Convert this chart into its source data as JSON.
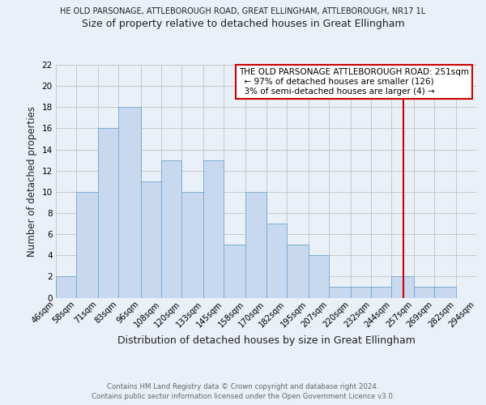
{
  "title_top": "HE OLD PARSONAGE, ATTLEBOROUGH ROAD, GREAT ELLINGHAM, ATTLEBOROUGH, NR17 1L",
  "title_main": "Size of property relative to detached houses in Great Ellingham",
  "xlabel": "Distribution of detached houses by size in Great Ellingham",
  "ylabel": "Number of detached properties",
  "bar_values": [
    2,
    10,
    16,
    18,
    11,
    13,
    10,
    13,
    5,
    10,
    7,
    5,
    4,
    1,
    1,
    1,
    2,
    1,
    1
  ],
  "bin_edges": [
    46,
    58,
    71,
    83,
    96,
    108,
    120,
    133,
    145,
    158,
    170,
    182,
    195,
    207,
    220,
    232,
    244,
    257,
    269,
    282
  ],
  "last_edge": 294,
  "xtick_labels": [
    "46sqm",
    "58sqm",
    "71sqm",
    "83sqm",
    "96sqm",
    "108sqm",
    "120sqm",
    "133sqm",
    "145sqm",
    "158sqm",
    "170sqm",
    "182sqm",
    "195sqm",
    "207sqm",
    "220sqm",
    "232sqm",
    "244sqm",
    "257sqm",
    "269sqm",
    "282sqm",
    "294sqm"
  ],
  "ylim": [
    0,
    22
  ],
  "yticks": [
    0,
    2,
    4,
    6,
    8,
    10,
    12,
    14,
    16,
    18,
    20,
    22
  ],
  "bar_color": "#c8d8ee",
  "bar_edge_color": "#7aadd4",
  "grid_color": "#c8c8c8",
  "vline_x": 251,
  "vline_color": "#cc0000",
  "annotation_title": "THE OLD PARSONAGE ATTLEBOROUGH ROAD: 251sqm",
  "annotation_line1": "← 97% of detached houses are smaller (126)",
  "annotation_line2": "3% of semi-detached houses are larger (4) →",
  "annotation_box_color": "#ffffff",
  "annotation_box_edge": "#cc0000",
  "footer_line1": "Contains HM Land Registry data © Crown copyright and database right 2024.",
  "footer_line2": "Contains public sector information licensed under the Open Government Licence v3.0.",
  "bg_color": "#eaf0f8",
  "top_title_color": "#222222",
  "title_color": "#222222"
}
